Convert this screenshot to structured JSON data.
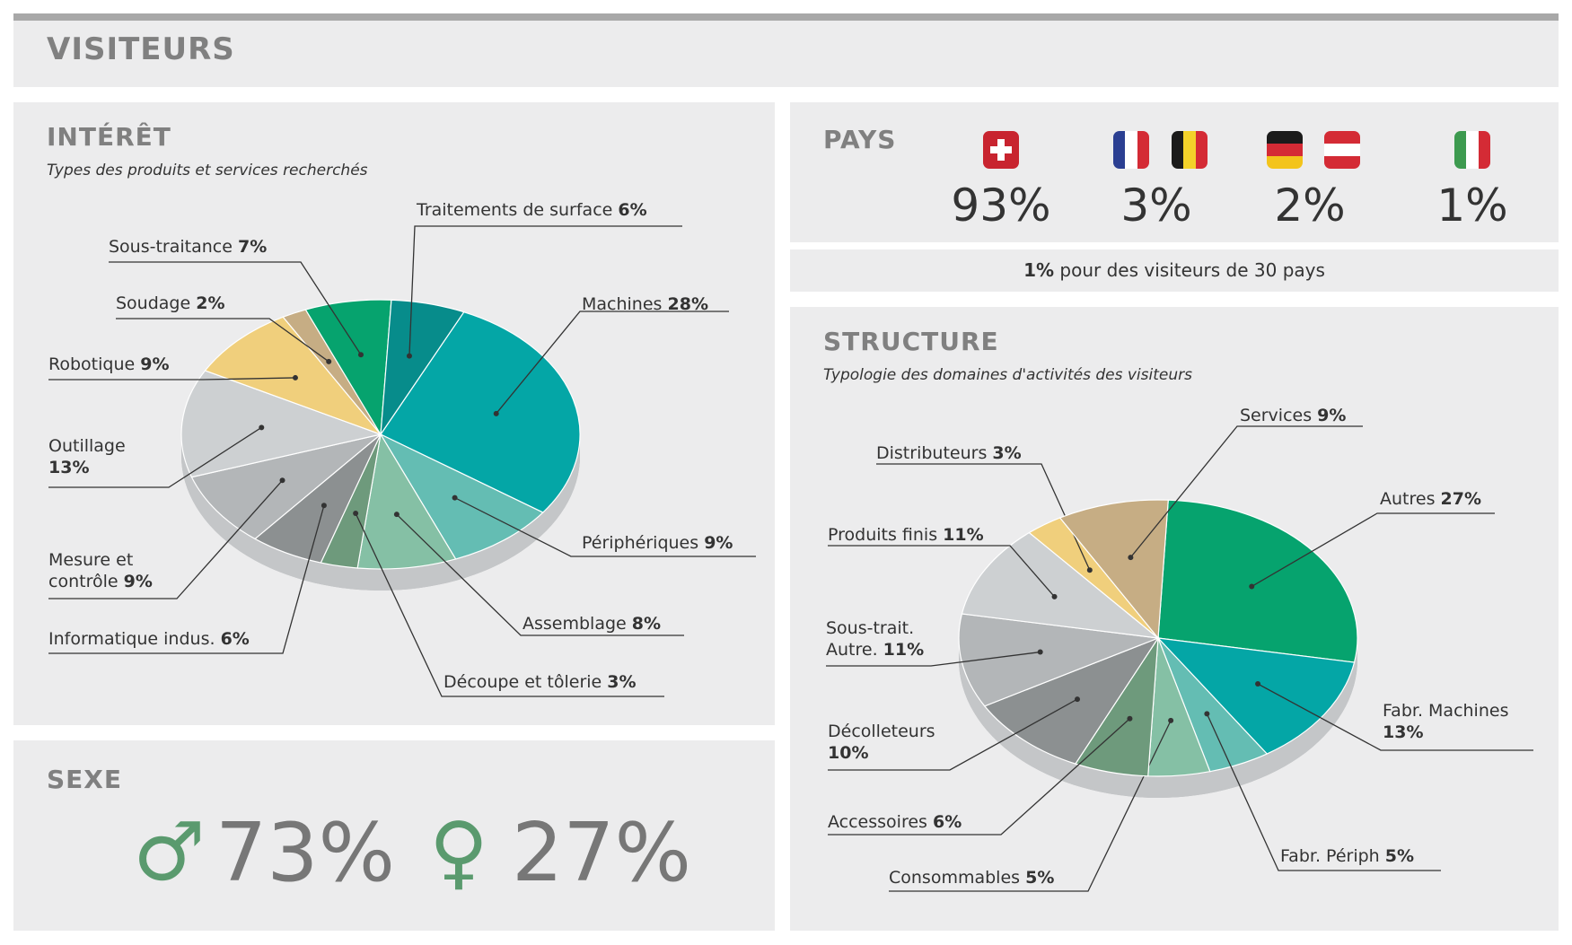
{
  "page": {
    "title": "VISITEURS"
  },
  "interet": {
    "title": "INTÉRÊT",
    "subtitle": "Types des produits et services recherchés"
  },
  "pays": {
    "title": "PAYS",
    "groups": [
      {
        "value": "93%",
        "flags": [
          "ch"
        ]
      },
      {
        "value": "3%",
        "flags": [
          "fr",
          "be"
        ]
      },
      {
        "value": "2%",
        "flags": [
          "de",
          "at"
        ]
      },
      {
        "value": "1%",
        "flags": [
          "it"
        ]
      }
    ],
    "note_bold": "1%",
    "note_rest": " pour des visiteurs de 30 pays"
  },
  "structure": {
    "title": "STRUCTURE",
    "subtitle": "Typologie des domaines d'activités des visiteurs"
  },
  "sexe": {
    "title": "SEXE",
    "male_symbol": "♂",
    "male_value": "73%",
    "female_symbol": "♀",
    "female_value": "27%"
  },
  "colors": {
    "panel": "#ececed",
    "heading": "#808080",
    "green": "#5a9a6e"
  },
  "chart_data": [
    {
      "type": "pie",
      "title": "INTÉRÊT",
      "slices": [
        {
          "name": "Machines",
          "value": 28,
          "color": "#04a6a6"
        },
        {
          "name": "Périphériques",
          "value": 9,
          "color": "#64bdb3"
        },
        {
          "name": "Assemblage",
          "value": 8,
          "color": "#85c0a5"
        },
        {
          "name": "Découpe et tôlerie",
          "value": 3,
          "color": "#6e9a7c"
        },
        {
          "name": "Informatique indus.",
          "value": 6,
          "color": "#8c9091"
        },
        {
          "name": "Mesure et contrôle",
          "value": 9,
          "color": "#b3b6b8"
        },
        {
          "name": "Outillage",
          "value": 13,
          "color": "#cdd0d2"
        },
        {
          "name": "Robotique",
          "value": 9,
          "color": "#f0cf7c"
        },
        {
          "name": "Soudage",
          "value": 2,
          "color": "#c6ad84"
        },
        {
          "name": "Sous-traitance",
          "value": 7,
          "color": "#06a36e"
        },
        {
          "name": "Traitements de surface",
          "value": 6,
          "color": "#078c8b"
        }
      ]
    },
    {
      "type": "pie",
      "title": "STRUCTURE",
      "slices": [
        {
          "name": "Autres",
          "value": 27,
          "color": "#06a36e"
        },
        {
          "name": "Fabr. Machines",
          "value": 13,
          "color": "#04a6a6"
        },
        {
          "name": "Fabr. Périph",
          "value": 5,
          "color": "#64bdb3"
        },
        {
          "name": "Consommables",
          "value": 5,
          "color": "#85c0a5"
        },
        {
          "name": "Accessoires",
          "value": 6,
          "color": "#6e9a7c"
        },
        {
          "name": "Décolleteurs",
          "value": 10,
          "color": "#8c9091"
        },
        {
          "name": "Sous-trait. Autre.",
          "value": 11,
          "color": "#b3b6b8"
        },
        {
          "name": "Produits finis",
          "value": 11,
          "color": "#cdd0d2"
        },
        {
          "name": "Distributeurs",
          "value": 3,
          "color": "#f0cf7c"
        },
        {
          "name": "Services",
          "value": 9,
          "color": "#c6ad84"
        }
      ]
    }
  ]
}
